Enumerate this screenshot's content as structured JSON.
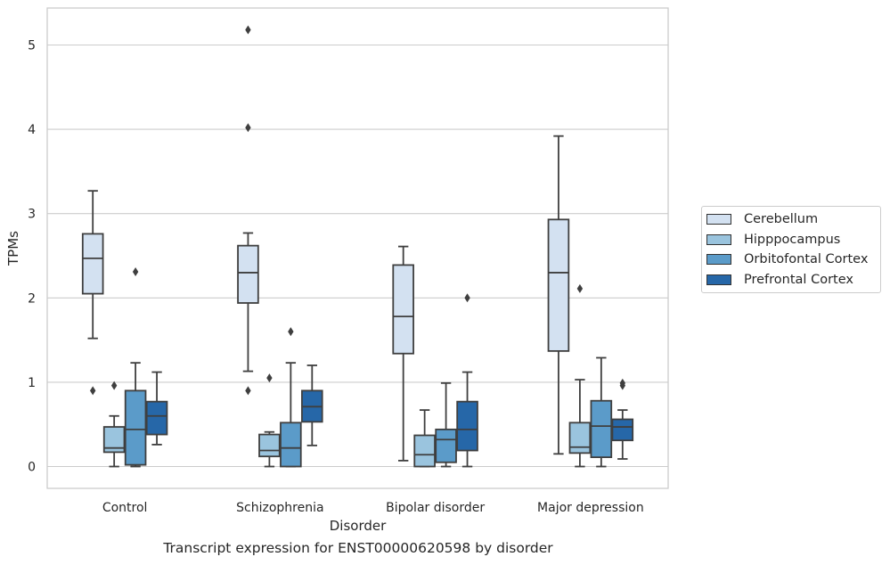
{
  "chart_data": {
    "type": "box",
    "caption": "Transcript expression for ENST00000620598 by disorder",
    "xlabel": "Disorder",
    "ylabel": "TPMs",
    "ylim": [
      -0.25,
      5.4
    ],
    "yticks": [
      0,
      1,
      2,
      3,
      4,
      5
    ],
    "grid": "horizontal",
    "legend_position": "right",
    "categories": [
      "Control",
      "Schizophrenia",
      "Bipolar disorder",
      "Major depression"
    ],
    "series": [
      {
        "name": "Cerebellum",
        "color": "#d3e1f1",
        "boxes": [
          {
            "whislo": 1.52,
            "q1": 2.05,
            "med": 2.47,
            "q3": 2.76,
            "whishi": 3.27,
            "fliers": [
              0.9
            ]
          },
          {
            "whislo": 1.13,
            "q1": 1.94,
            "med": 2.3,
            "q3": 2.62,
            "whishi": 2.77,
            "fliers": [
              0.9,
              4.02,
              5.18
            ]
          },
          {
            "whislo": 0.07,
            "q1": 1.34,
            "med": 1.78,
            "q3": 2.39,
            "whishi": 2.61,
            "fliers": []
          },
          {
            "whislo": 0.15,
            "q1": 1.37,
            "med": 2.3,
            "q3": 2.93,
            "whishi": 3.92,
            "fliers": []
          }
        ]
      },
      {
        "name": "Hipppocampus",
        "color": "#9ac4de",
        "boxes": [
          {
            "whislo": 0.0,
            "q1": 0.17,
            "med": 0.22,
            "q3": 0.47,
            "whishi": 0.6,
            "fliers": [
              0.96
            ]
          },
          {
            "whislo": 0.0,
            "q1": 0.12,
            "med": 0.19,
            "q3": 0.38,
            "whishi": 0.41,
            "fliers": [
              1.05
            ]
          },
          {
            "whislo": 0.0,
            "q1": 0.0,
            "med": 0.14,
            "q3": 0.37,
            "whishi": 0.67,
            "fliers": []
          },
          {
            "whislo": 0.0,
            "q1": 0.16,
            "med": 0.23,
            "q3": 0.52,
            "whishi": 1.03,
            "fliers": [
              2.11
            ]
          }
        ]
      },
      {
        "name": "Orbitofontal Cortex",
        "color": "#5b9bc9",
        "boxes": [
          {
            "whislo": 0.0,
            "q1": 0.02,
            "med": 0.44,
            "q3": 0.9,
            "whishi": 1.23,
            "fliers": [
              2.31
            ]
          },
          {
            "whislo": 0.0,
            "q1": 0.0,
            "med": 0.22,
            "q3": 0.52,
            "whishi": 1.23,
            "fliers": [
              1.6
            ]
          },
          {
            "whislo": 0.0,
            "q1": 0.05,
            "med": 0.32,
            "q3": 0.44,
            "whishi": 0.99,
            "fliers": []
          },
          {
            "whislo": 0.0,
            "q1": 0.11,
            "med": 0.48,
            "q3": 0.78,
            "whishi": 1.29,
            "fliers": []
          }
        ]
      },
      {
        "name": "Prefrontal Cortex",
        "color": "#2667a8",
        "boxes": [
          {
            "whislo": 0.26,
            "q1": 0.38,
            "med": 0.6,
            "q3": 0.77,
            "whishi": 1.12,
            "fliers": []
          },
          {
            "whislo": 0.25,
            "q1": 0.53,
            "med": 0.71,
            "q3": 0.9,
            "whishi": 1.2,
            "fliers": []
          },
          {
            "whislo": 0.0,
            "q1": 0.19,
            "med": 0.44,
            "q3": 0.77,
            "whishi": 1.12,
            "fliers": [
              2.0
            ]
          },
          {
            "whislo": 0.09,
            "q1": 0.31,
            "med": 0.47,
            "q3": 0.56,
            "whishi": 0.67,
            "fliers": [
              0.96,
              0.99
            ]
          }
        ]
      }
    ]
  }
}
